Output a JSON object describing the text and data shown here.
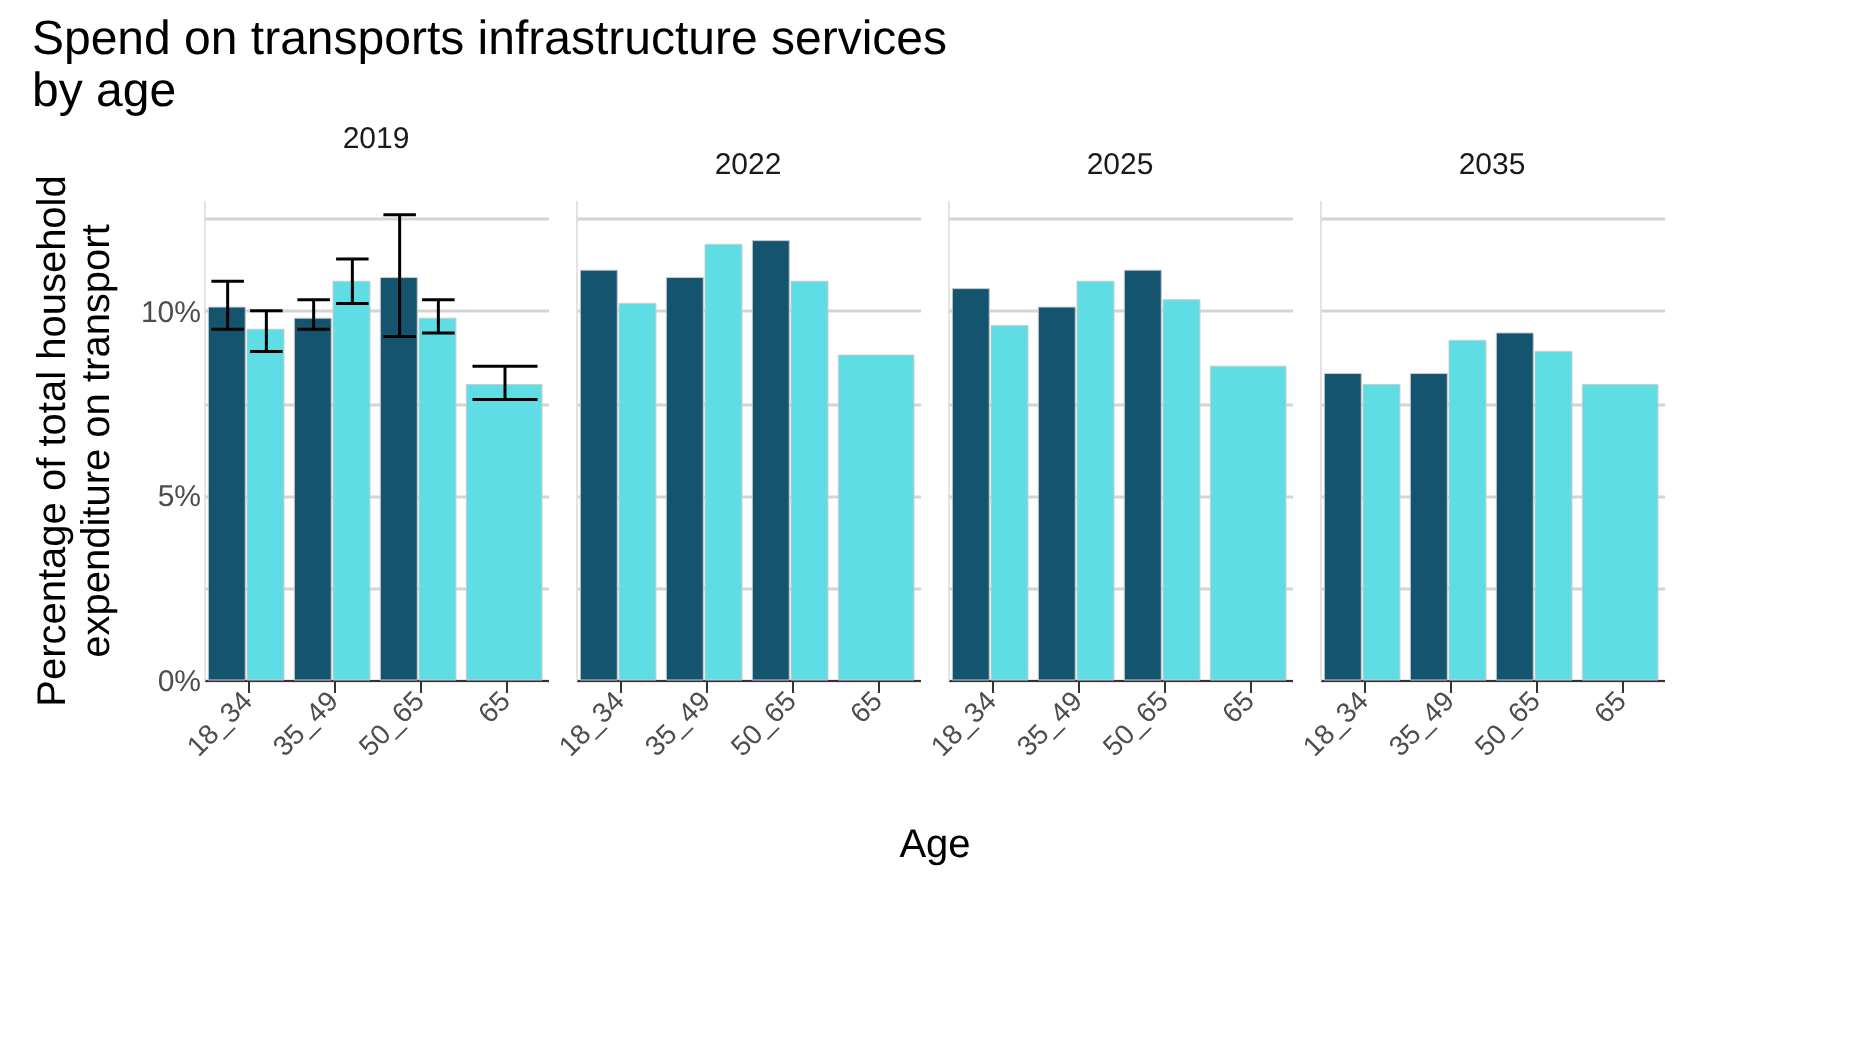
{
  "chart_data": [
    {
      "type": "bar",
      "title": "Spend on transports infrastructure services by age",
      "subtitle": "2019",
      "ylabel": "Percentage of total household expenditure on transport",
      "categories": [
        "18_34",
        "35_49",
        "50_65",
        "65"
      ],
      "series": [
        {
          "color": "#14546e",
          "values": [
            10.1,
            9.8,
            10.9,
            null
          ],
          "errors": [
            [
              9.5,
              10.8
            ],
            [
              9.5,
              10.3
            ],
            [
              9.3,
              12.6
            ],
            null
          ]
        },
        {
          "color": "#5fdde5",
          "values": [
            9.5,
            10.8,
            9.8,
            8.0
          ],
          "errors": [
            [
              8.9,
              10.0
            ],
            [
              10.2,
              11.4
            ],
            [
              9.4,
              10.3
            ],
            [
              7.6,
              8.5
            ]
          ]
        }
      ],
      "ylim": [
        0,
        13
      ],
      "yticks": [
        {
          "value": 0,
          "label": "0%"
        },
        {
          "value": 2.5,
          "label": null
        },
        {
          "value": 5,
          "label": "5%"
        },
        {
          "value": 7.5,
          "label": null
        },
        {
          "value": 10,
          "label": "10%"
        },
        {
          "value": 12.5,
          "label": null
        }
      ],
      "grid": "y"
    },
    {
      "type": "bar",
      "subtitle": "2022",
      "xlabel": "Age",
      "categories": [
        "18_34",
        "35_49",
        "50_65",
        "65"
      ],
      "series": [
        {
          "color": "#14546e",
          "values": [
            11.1,
            10.9,
            11.9,
            null
          ]
        },
        {
          "color": "#5fdde5",
          "values": [
            10.2,
            11.8,
            10.8,
            8.8
          ]
        }
      ],
      "ylim": [
        0,
        13
      ],
      "yticks": [
        {
          "value": 0,
          "label": null
        },
        {
          "value": 2.5,
          "label": null
        },
        {
          "value": 5,
          "label": null
        },
        {
          "value": 7.5,
          "label": null
        },
        {
          "value": 10,
          "label": null
        },
        {
          "value": 12.5,
          "label": null
        }
      ],
      "grid": "y",
      "tick_labels": "x"
    },
    {
      "type": "bar",
      "subtitle": "2025",
      "categories": [
        "18_34",
        "35_49",
        "50_65",
        "65"
      ],
      "series": [
        {
          "color": "#14546e",
          "values": [
            10.6,
            10.1,
            11.1,
            null
          ]
        },
        {
          "color": "#5fdde5",
          "values": [
            9.6,
            10.8,
            10.3,
            8.5
          ]
        }
      ],
      "ylim": [
        0,
        13
      ],
      "yticks": [
        {
          "value": 0,
          "label": null
        },
        {
          "value": 2.5,
          "label": null
        },
        {
          "value": 5,
          "label": null
        },
        {
          "value": 7.5,
          "label": null
        },
        {
          "value": 10,
          "label": null
        },
        {
          "value": 12.5,
          "label": null
        }
      ],
      "grid": "y",
      "tick_labels": "x"
    },
    {
      "type": "bar",
      "subtitle": "2035",
      "categories": [
        "18_34",
        "35_49",
        "50_65",
        "65"
      ],
      "series": [
        {
          "color": "#14546e",
          "values": [
            8.3,
            8.3,
            9.4,
            null
          ]
        },
        {
          "color": "#5fdde5",
          "values": [
            8.0,
            9.2,
            8.9,
            8.0
          ]
        }
      ],
      "ylim": [
        0,
        13
      ],
      "yticks": [
        {
          "value": 0,
          "label": null
        },
        {
          "value": 2.5,
          "label": null
        },
        {
          "value": 5,
          "label": null
        },
        {
          "value": 7.5,
          "label": null
        },
        {
          "value": 10,
          "label": null
        },
        {
          "value": 12.5,
          "label": null
        }
      ],
      "grid": "y",
      "tick_labels": "x"
    }
  ]
}
